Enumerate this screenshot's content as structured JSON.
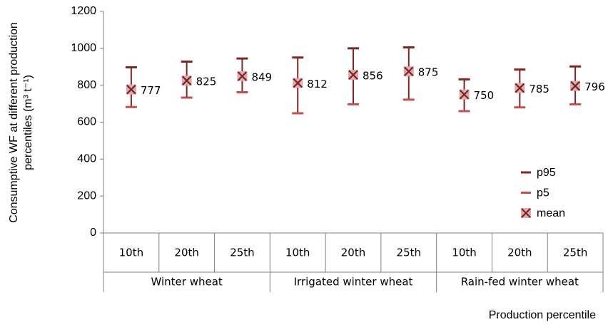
{
  "chart_data": {
    "type": "range",
    "y_label_lines": [
      "Consumptive WF at different production",
      "percentiles (m³ t⁻¹)"
    ],
    "x_label": "Production percentile",
    "groups": [
      {
        "label": "Winter wheat",
        "categories": [
          "10th",
          "20th",
          "25th"
        ]
      },
      {
        "label": "Irrigated winter wheat",
        "categories": [
          "10th",
          "20th",
          "25th"
        ]
      },
      {
        "label": "Rain-fed winter wheat",
        "categories": [
          "10th",
          "20th",
          "25th"
        ]
      }
    ],
    "series": [
      {
        "name": "p95",
        "color": "#7f2626",
        "values": [
          897,
          928,
          945,
          950,
          1000,
          1005,
          832,
          885,
          902
        ]
      },
      {
        "name": "p5",
        "color": "#c0504d",
        "values": [
          682,
          733,
          762,
          648,
          697,
          722,
          660,
          680,
          697
        ]
      },
      {
        "name": "mean",
        "color": "#6b2a2a",
        "values": [
          777,
          825,
          849,
          812,
          856,
          875,
          750,
          785,
          796
        ]
      }
    ],
    "ylim": [
      0,
      1200
    ],
    "yticks": [
      0,
      200,
      400,
      600,
      800,
      1000,
      1200
    ],
    "grid": false,
    "legend": "lower right"
  }
}
